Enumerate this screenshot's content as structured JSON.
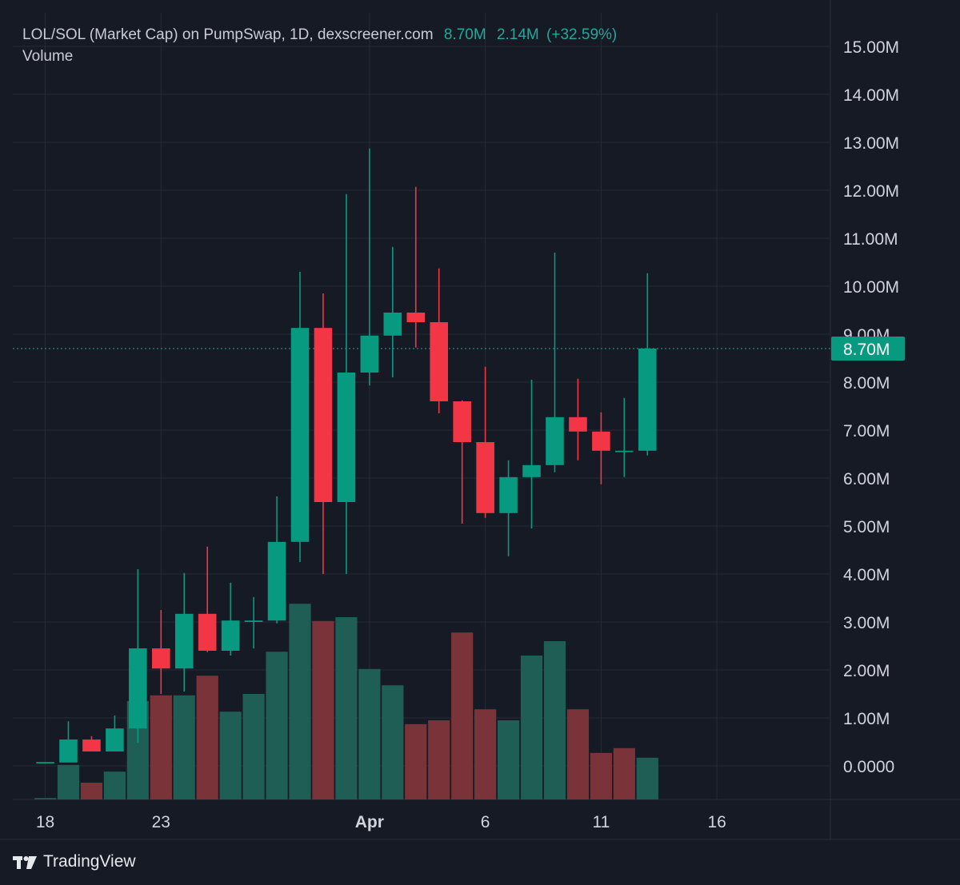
{
  "header": {
    "title": "LOL/SOL (Market Cap) on PumpSwap, 1D, dexscreener.com",
    "last_value": "8.70M",
    "change_value": "2.14M",
    "change_pct": "(+32.59%)",
    "volume_label": "Volume"
  },
  "brand": {
    "name": "TradingView",
    "icon": "tradingview-logo-icon"
  },
  "colors": {
    "background": "#161a25",
    "grid": "#262a36",
    "up": "#089981",
    "down": "#f23645",
    "up_volume": "#1f5e55",
    "down_volume": "#7a3338",
    "price_line": "#26a69a",
    "axis_text": "#d1d4dc"
  },
  "chart_data": {
    "type": "candlestick",
    "title": "LOL/SOL (Market Cap) on PumpSwap, 1D, dexscreener.com",
    "y_axis": {
      "ticks": [
        "15.00M",
        "14.00M",
        "13.00M",
        "12.00M",
        "11.00M",
        "10.00M",
        "9.00M",
        "8.00M",
        "7.00M",
        "6.00M",
        "5.00M",
        "4.00M",
        "3.00M",
        "2.00M",
        "1.00M",
        "0.0000"
      ],
      "range_millions": [
        -0.7,
        15.7
      ],
      "position": "right"
    },
    "x_axis": {
      "ticks": [
        {
          "label": "18",
          "day": 18
        },
        {
          "label": "23",
          "day": 23
        },
        {
          "label": "Apr",
          "day": 32,
          "bold": true
        },
        {
          "label": "6",
          "day": 37
        },
        {
          "label": "11",
          "day": 42
        },
        {
          "label": "16",
          "day": 47
        }
      ],
      "range_days": [
        16.6,
        51.9
      ]
    },
    "current_price": {
      "value": 8.7,
      "label": "8.70M"
    },
    "units": "millions",
    "candles": [
      {
        "day": 18,
        "open": 0.07,
        "high": 0.08,
        "low": 0.05,
        "close": 0.08
      },
      {
        "day": 19,
        "open": 0.07,
        "high": 0.93,
        "low": 0.07,
        "close": 0.55
      },
      {
        "day": 20,
        "open": 0.55,
        "high": 0.62,
        "low": 0.3,
        "close": 0.3
      },
      {
        "day": 21,
        "open": 0.3,
        "high": 1.05,
        "low": 0.3,
        "close": 0.78
      },
      {
        "day": 22,
        "open": 0.78,
        "high": 4.1,
        "low": 0.48,
        "close": 2.45
      },
      {
        "day": 23,
        "open": 2.45,
        "high": 3.25,
        "low": 1.5,
        "close": 2.03
      },
      {
        "day": 24,
        "open": 2.03,
        "high": 4.02,
        "low": 1.55,
        "close": 3.17
      },
      {
        "day": 25,
        "open": 3.17,
        "high": 4.57,
        "low": 2.37,
        "close": 2.4
      },
      {
        "day": 26,
        "open": 2.4,
        "high": 3.82,
        "low": 2.3,
        "close": 3.03
      },
      {
        "day": 27,
        "open": 3.03,
        "high": 3.52,
        "low": 2.45,
        "close": 3.03
      },
      {
        "day": 28,
        "open": 3.03,
        "high": 5.62,
        "low": 2.97,
        "close": 4.67
      },
      {
        "day": 29,
        "open": 4.67,
        "high": 10.3,
        "low": 4.25,
        "close": 9.13
      },
      {
        "day": 30,
        "open": 9.13,
        "high": 9.85,
        "low": 4.0,
        "close": 5.5
      },
      {
        "day": 31,
        "open": 5.5,
        "high": 11.92,
        "low": 4.0,
        "close": 8.2
      },
      {
        "day": 32,
        "open": 8.2,
        "high": 12.87,
        "low": 7.93,
        "close": 8.97
      },
      {
        "day": 33,
        "open": 8.97,
        "high": 10.82,
        "low": 8.1,
        "close": 9.45
      },
      {
        "day": 34,
        "open": 9.45,
        "high": 12.07,
        "low": 8.72,
        "close": 9.25
      },
      {
        "day": 35,
        "open": 9.25,
        "high": 10.37,
        "low": 7.35,
        "close": 7.6
      },
      {
        "day": 36,
        "open": 7.6,
        "high": 7.62,
        "low": 5.05,
        "close": 6.75
      },
      {
        "day": 37,
        "open": 6.75,
        "high": 8.32,
        "low": 5.17,
        "close": 5.27
      },
      {
        "day": 38,
        "open": 5.27,
        "high": 6.37,
        "low": 4.37,
        "close": 6.02
      },
      {
        "day": 39,
        "open": 6.02,
        "high": 8.05,
        "low": 4.95,
        "close": 6.27
      },
      {
        "day": 40,
        "open": 6.27,
        "high": 10.7,
        "low": 6.12,
        "close": 7.27
      },
      {
        "day": 41,
        "open": 7.27,
        "high": 8.07,
        "low": 6.37,
        "close": 6.97
      },
      {
        "day": 42,
        "open": 6.97,
        "high": 7.37,
        "low": 5.87,
        "close": 6.57
      },
      {
        "day": 43,
        "open": 6.57,
        "high": 7.67,
        "low": 6.02,
        "close": 6.57
      },
      {
        "day": 44,
        "open": 6.57,
        "high": 10.27,
        "low": 6.47,
        "close": 8.7
      }
    ],
    "volume": {
      "label": "Volume",
      "bars": [
        {
          "day": 18,
          "value": 0.03,
          "dir": "up"
        },
        {
          "day": 19,
          "value": 0.72,
          "dir": "up"
        },
        {
          "day": 20,
          "value": 0.35,
          "dir": "down"
        },
        {
          "day": 21,
          "value": 0.58,
          "dir": "up"
        },
        {
          "day": 22,
          "value": 2.05,
          "dir": "up"
        },
        {
          "day": 23,
          "value": 2.17,
          "dir": "down"
        },
        {
          "day": 24,
          "value": 2.17,
          "dir": "up"
        },
        {
          "day": 25,
          "value": 2.58,
          "dir": "down"
        },
        {
          "day": 26,
          "value": 1.83,
          "dir": "up"
        },
        {
          "day": 27,
          "value": 2.2,
          "dir": "up"
        },
        {
          "day": 28,
          "value": 3.08,
          "dir": "up"
        },
        {
          "day": 29,
          "value": 4.08,
          "dir": "up"
        },
        {
          "day": 30,
          "value": 3.72,
          "dir": "down"
        },
        {
          "day": 31,
          "value": 3.8,
          "dir": "up"
        },
        {
          "day": 32,
          "value": 2.72,
          "dir": "up"
        },
        {
          "day": 33,
          "value": 2.38,
          "dir": "up"
        },
        {
          "day": 34,
          "value": 1.57,
          "dir": "down"
        },
        {
          "day": 35,
          "value": 1.65,
          "dir": "down"
        },
        {
          "day": 36,
          "value": 3.48,
          "dir": "down"
        },
        {
          "day": 37,
          "value": 1.88,
          "dir": "down"
        },
        {
          "day": 38,
          "value": 1.65,
          "dir": "up"
        },
        {
          "day": 39,
          "value": 3.0,
          "dir": "up"
        },
        {
          "day": 40,
          "value": 3.3,
          "dir": "up"
        },
        {
          "day": 41,
          "value": 1.88,
          "dir": "down"
        },
        {
          "day": 42,
          "value": 0.97,
          "dir": "down"
        },
        {
          "day": 43,
          "value": 1.07,
          "dir": "down"
        },
        {
          "day": 44,
          "value": 0.87,
          "dir": "up"
        }
      ]
    },
    "grid": true,
    "legend": "none"
  }
}
